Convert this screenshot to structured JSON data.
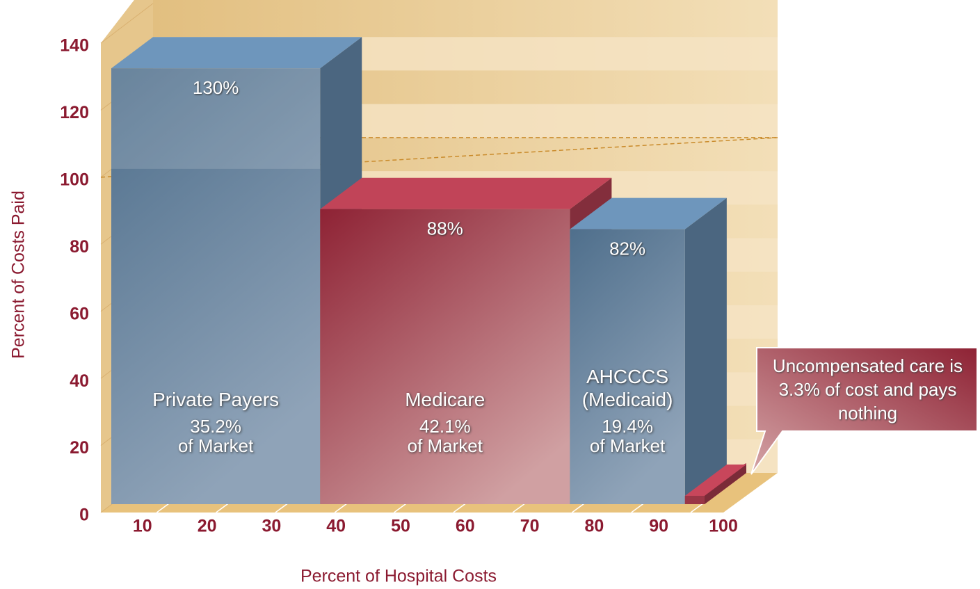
{
  "chart_data": {
    "type": "bar",
    "categories": [
      "Private Payers",
      "Medicare",
      "AHCCCS (Medicaid)",
      null
    ],
    "widths": [
      35.2,
      42.1,
      19.4,
      3.3
    ],
    "width_labels": [
      "35.2%",
      "42.1%",
      "19.4%",
      null
    ],
    "market_label": "of Market",
    "values": [
      130,
      88,
      82,
      0
    ],
    "value_labels": [
      "130%",
      "88%",
      "82%",
      null
    ],
    "colors": [
      "#587896",
      "#9a3646",
      "#587896",
      "#9a3646"
    ],
    "reference_line": 100,
    "annotation": "Uncompensated care is 3.3% of cost and pays nothing",
    "xlabel": "Percent of Hospital Costs",
    "ylabel": "Percent of Costs Paid",
    "xlim": [
      0,
      100
    ],
    "xticks": [
      10,
      20,
      30,
      40,
      50,
      60,
      70,
      80,
      90,
      100
    ],
    "ylim": [
      0,
      140
    ],
    "yticks": [
      0,
      20,
      40,
      60,
      80,
      100,
      120,
      140
    ]
  }
}
